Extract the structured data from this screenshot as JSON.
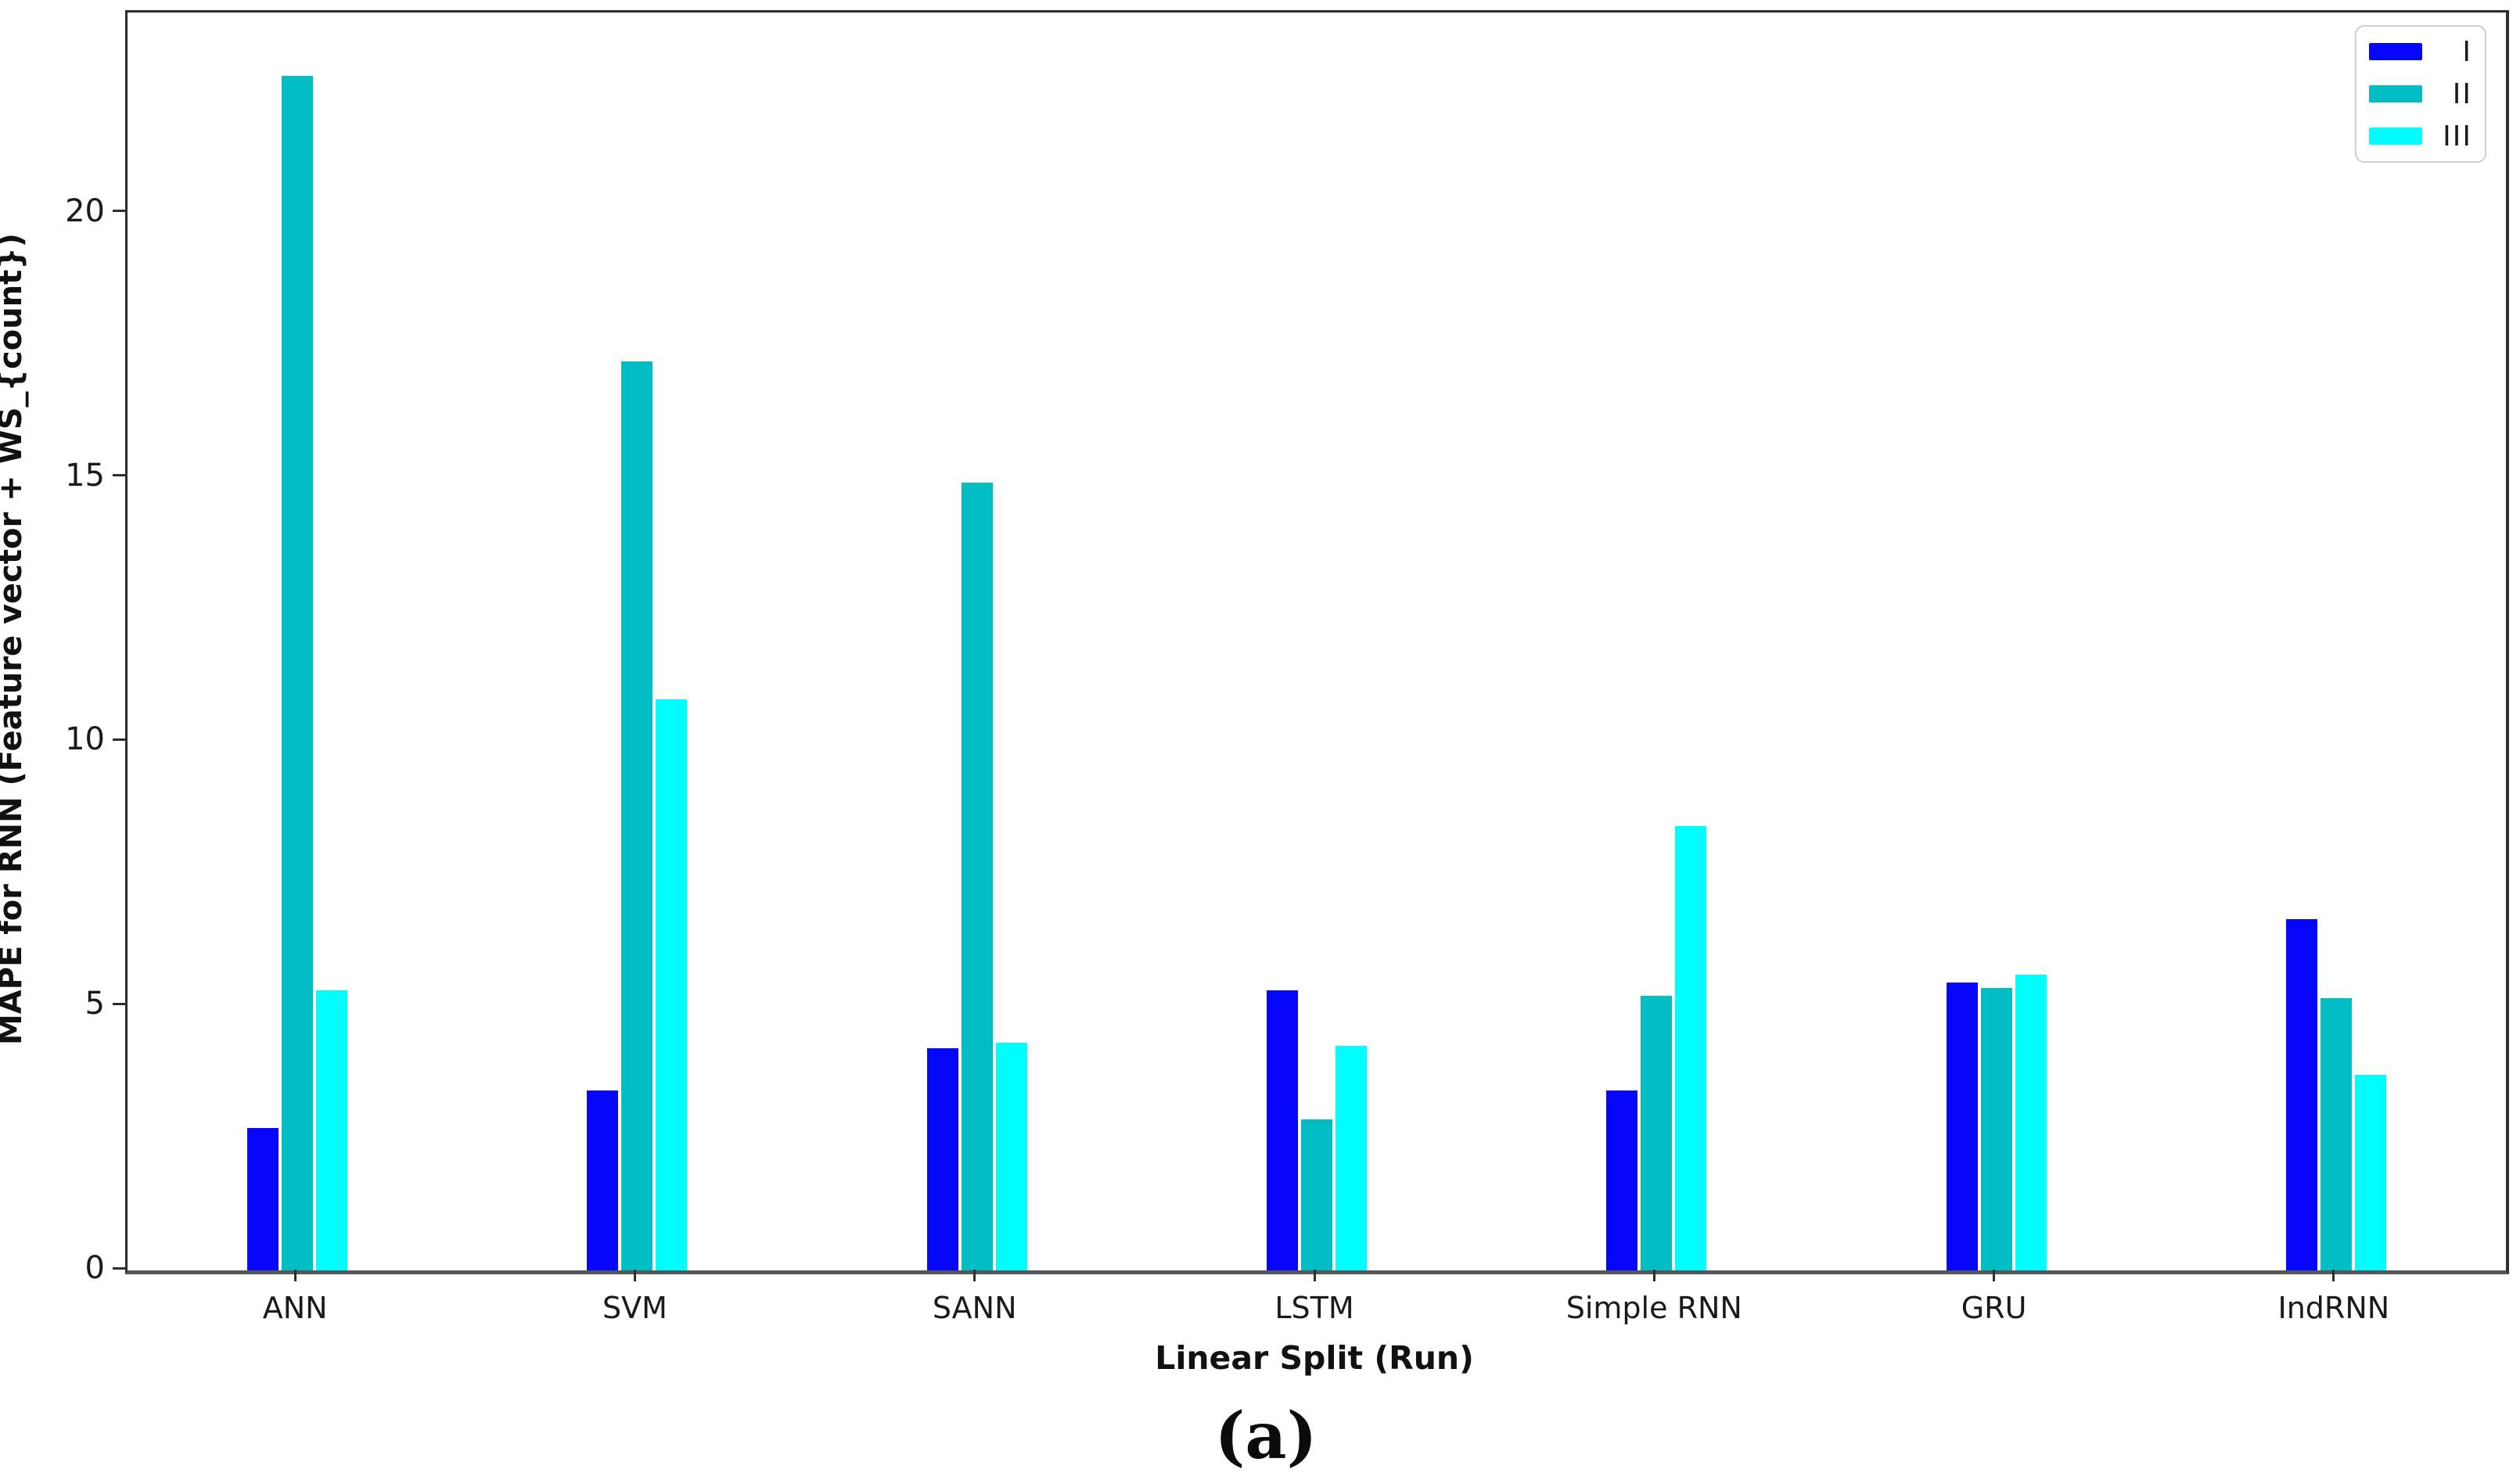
{
  "chart_data": {
    "type": "bar",
    "title": "",
    "xlabel": "Linear Split (Run)",
    "ylabel": "MAPE for RNN (Feature vector + WS_{count})",
    "caption": "(a)",
    "categories": [
      "ANN",
      "SVM",
      "SANN",
      "LSTM",
      "Simple RNN",
      "GRU",
      "IndRNN"
    ],
    "series": [
      {
        "name": "I",
        "color": "#0606fa",
        "values": [
          2.7,
          3.4,
          4.2,
          5.3,
          3.4,
          5.45,
          6.65
        ]
      },
      {
        "name": "II",
        "color": "#00bec3",
        "values": [
          22.6,
          17.2,
          14.9,
          2.85,
          5.2,
          5.35,
          5.15
        ]
      },
      {
        "name": "III",
        "color": "#00feff",
        "values": [
          5.3,
          10.8,
          4.3,
          4.25,
          8.4,
          5.6,
          3.7
        ]
      }
    ],
    "ylim": [
      0,
      23.8
    ],
    "yticks": [
      0,
      5,
      10,
      15,
      20
    ],
    "grid": "off",
    "legend_position": "upper right",
    "colors": {
      "spine": "#2e2e2e",
      "text": "#1a1a1a"
    }
  }
}
